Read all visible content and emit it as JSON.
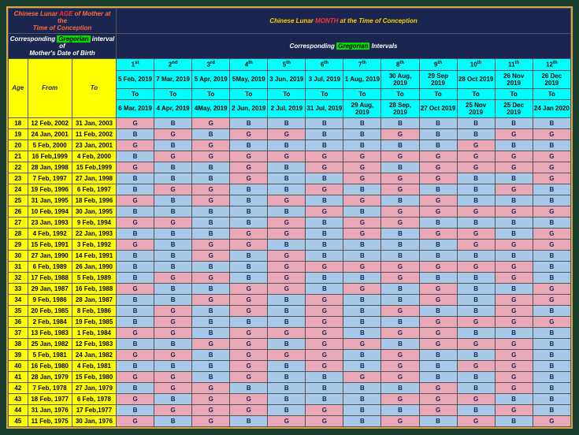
{
  "header": {
    "left_title_1": "Chinese Lunar",
    "left_title_age": "AGE",
    "left_title_2": "of Mother at the",
    "left_title_3": "Time of Conception",
    "right_title_1": "Chinese Lunar",
    "right_title_month": "MONTH",
    "right_title_2": "at the Time of Conception",
    "left_sub_1": "Corresponding",
    "left_sub_greg": "Gregorian",
    "left_sub_2": "interval of",
    "left_sub_3": "Mother's Date of Birth",
    "right_sub_1": "Corresponding",
    "right_sub_greg": "Gregorian",
    "right_sub_2": "Intervals"
  },
  "cols": {
    "age": "Age",
    "from": "From",
    "to": "To"
  },
  "months": [
    {
      "ord": "1",
      "sup": "st",
      "start": "5 Feb, 2019",
      "to": "To",
      "end": "6 Mar, 2019"
    },
    {
      "ord": "2",
      "sup": "nd",
      "start": "7 Mar, 2019",
      "to": "To",
      "end": "4 Apr, 2019"
    },
    {
      "ord": "3",
      "sup": "rd",
      "start": "5 Apr, 2019",
      "to": "To",
      "end": "4May, 2019"
    },
    {
      "ord": "4",
      "sup": "th",
      "start": "5May, 2019",
      "to": "To",
      "end": "2 Jun, 2019"
    },
    {
      "ord": "5",
      "sup": "th",
      "start": "3 Jun, 2019",
      "to": "To",
      "end": "2 Jul, 2019"
    },
    {
      "ord": "6",
      "sup": "th",
      "start": "3 Jul, 2019",
      "to": "To",
      "end": "31 Jul, 2019"
    },
    {
      "ord": "7",
      "sup": "th",
      "start": "1 Aug, 2019",
      "to": "To",
      "end": "29 Aug, 2019"
    },
    {
      "ord": "8",
      "sup": "th",
      "start": "30 Aug, 2019",
      "to": "To",
      "end": "28 Sep, 2019"
    },
    {
      "ord": "9",
      "sup": "th",
      "start": "29 Sep 2019",
      "to": "To",
      "end": "27 Oct 2019"
    },
    {
      "ord": "10",
      "sup": "th",
      "start": "28 Oct 2019",
      "to": "To",
      "end": "25 Nov 2019"
    },
    {
      "ord": "11",
      "sup": "th",
      "start": "26 Nov 2019",
      "to": "To",
      "end": "25 Dec 2019"
    },
    {
      "ord": "12",
      "sup": "th",
      "start": "26 Dec 2019",
      "to": "To",
      "end": "24 Jan 2020"
    }
  ],
  "rows": [
    {
      "age": "18",
      "from": "12 Feb, 2002",
      "to": "31 Jan, 2003",
      "v": [
        "G",
        "B",
        "G",
        "B",
        "B",
        "B",
        "B",
        "B",
        "B",
        "B",
        "B",
        "B"
      ]
    },
    {
      "age": "19",
      "from": "24 Jan, 2001",
      "to": "11 Feb, 2002",
      "v": [
        "B",
        "G",
        "B",
        "G",
        "G",
        "B",
        "B",
        "G",
        "B",
        "B",
        "G",
        "G"
      ]
    },
    {
      "age": "20",
      "from": "5 Feb, 2000",
      "to": "23 Jan, 2001",
      "v": [
        "G",
        "B",
        "G",
        "B",
        "B",
        "B",
        "B",
        "B",
        "B",
        "G",
        "B",
        "B"
      ]
    },
    {
      "age": "21",
      "from": "16 Feb,1999",
      "to": "4 Feb, 2000",
      "v": [
        "B",
        "G",
        "G",
        "G",
        "G",
        "G",
        "G",
        "G",
        "G",
        "G",
        "G",
        "G"
      ]
    },
    {
      "age": "22",
      "from": "28 Jan, 1998",
      "to": "15 Feb,1999",
      "v": [
        "G",
        "B",
        "B",
        "G",
        "B",
        "G",
        "G",
        "B",
        "G",
        "G",
        "G",
        "G"
      ]
    },
    {
      "age": "23",
      "from": "7 Feb, 1997",
      "to": "27 Jan, 1998",
      "v": [
        "B",
        "B",
        "B",
        "G",
        "B",
        "B",
        "G",
        "G",
        "G",
        "B",
        "B",
        "G"
      ]
    },
    {
      "age": "24",
      "from": "19 Feb, 1996",
      "to": "6 Feb, 1997",
      "v": [
        "B",
        "G",
        "G",
        "B",
        "B",
        "G",
        "B",
        "G",
        "B",
        "B",
        "G",
        "B"
      ]
    },
    {
      "age": "25",
      "from": "31 Jan, 1995",
      "to": "18 Feb, 1996",
      "v": [
        "G",
        "B",
        "G",
        "B",
        "G",
        "B",
        "G",
        "B",
        "G",
        "B",
        "B",
        "B"
      ]
    },
    {
      "age": "26",
      "from": "10 Feb, 1994",
      "to": "30 Jan, 1995",
      "v": [
        "B",
        "B",
        "B",
        "B",
        "B",
        "G",
        "B",
        "G",
        "G",
        "G",
        "G",
        "G"
      ]
    },
    {
      "age": "27",
      "from": "23 Jan, 1993",
      "to": "9 Feb, 1994",
      "v": [
        "G",
        "G",
        "B",
        "B",
        "G",
        "B",
        "G",
        "G",
        "B",
        "B",
        "B",
        "B"
      ]
    },
    {
      "age": "28",
      "from": "4 Feb, 1992",
      "to": "22 Jan, 1993",
      "v": [
        "B",
        "B",
        "B",
        "G",
        "G",
        "B",
        "G",
        "B",
        "G",
        "G",
        "B",
        "G"
      ]
    },
    {
      "age": "29",
      "from": "15 Feb, 1991",
      "to": "3 Feb, 1992",
      "v": [
        "G",
        "B",
        "G",
        "G",
        "B",
        "B",
        "B",
        "B",
        "B",
        "G",
        "G",
        "G"
      ]
    },
    {
      "age": "30",
      "from": "27 Jan, 1990",
      "to": "14 Feb, 1991",
      "v": [
        "B",
        "B",
        "G",
        "B",
        "G",
        "B",
        "B",
        "B",
        "B",
        "B",
        "B",
        "B"
      ]
    },
    {
      "age": "31",
      "from": "6 Feb, 1989",
      "to": "26 Jan, 1990",
      "v": [
        "B",
        "B",
        "B",
        "B",
        "G",
        "G",
        "G",
        "G",
        "G",
        "G",
        "G",
        "B"
      ]
    },
    {
      "age": "32",
      "from": "17 Feb, 1988",
      "to": "5 Feb, 1989",
      "v": [
        "B",
        "G",
        "G",
        "B",
        "G",
        "B",
        "B",
        "G",
        "B",
        "B",
        "G",
        "B"
      ]
    },
    {
      "age": "33",
      "from": "29 Jan, 1987",
      "to": "16 Feb, 1988",
      "v": [
        "G",
        "B",
        "B",
        "G",
        "G",
        "B",
        "G",
        "B",
        "G",
        "B",
        "B",
        "G"
      ]
    },
    {
      "age": "34",
      "from": "9 Feb, 1986",
      "to": "28 Jan, 1987",
      "v": [
        "B",
        "B",
        "G",
        "G",
        "B",
        "G",
        "B",
        "B",
        "G",
        "B",
        "G",
        "G"
      ]
    },
    {
      "age": "35",
      "from": "20 Feb, 1985",
      "to": "8 Feb, 1986",
      "v": [
        "B",
        "G",
        "B",
        "G",
        "B",
        "G",
        "B",
        "G",
        "B",
        "B",
        "G",
        "B"
      ]
    },
    {
      "age": "36",
      "from": "2 Feb, 1984",
      "to": "19 Feb, 1985",
      "v": [
        "B",
        "G",
        "B",
        "B",
        "B",
        "G",
        "B",
        "B",
        "G",
        "G",
        "G",
        "G"
      ]
    },
    {
      "age": "37",
      "from": "13 Feb, 1983",
      "to": "1 Feb, 1984",
      "v": [
        "G",
        "G",
        "B",
        "G",
        "G",
        "G",
        "B",
        "G",
        "G",
        "B",
        "B",
        "B"
      ]
    },
    {
      "age": "38",
      "from": "25 Jan, 1982",
      "to": "12 Feb, 1983",
      "v": [
        "B",
        "B",
        "G",
        "G",
        "B",
        "G",
        "G",
        "B",
        "G",
        "G",
        "G",
        "B"
      ]
    },
    {
      "age": "39",
      "from": "5 Feb, 1981",
      "to": "24 Jan, 1982",
      "v": [
        "G",
        "G",
        "B",
        "G",
        "G",
        "G",
        "B",
        "G",
        "B",
        "B",
        "G",
        "B"
      ]
    },
    {
      "age": "40",
      "from": "16 Feb, 1980",
      "to": "4 Feb, 1981",
      "v": [
        "B",
        "B",
        "B",
        "G",
        "B",
        "G",
        "B",
        "G",
        "B",
        "G",
        "G",
        "B"
      ]
    },
    {
      "age": "41",
      "from": "28 Jan, 1979",
      "to": "15 Feb, 1980",
      "v": [
        "G",
        "G",
        "B",
        "G",
        "B",
        "B",
        "G",
        "G",
        "B",
        "B",
        "G",
        "B"
      ]
    },
    {
      "age": "42",
      "from": "7 Feb, 1978",
      "to": "27 Jan, 1979",
      "v": [
        "B",
        "G",
        "G",
        "B",
        "B",
        "B",
        "B",
        "B",
        "G",
        "B",
        "G",
        "B"
      ]
    },
    {
      "age": "43",
      "from": "18 Feb, 1977",
      "to": "6 Feb, 1978",
      "v": [
        "G",
        "B",
        "G",
        "G",
        "B",
        "B",
        "B",
        "G",
        "G",
        "G",
        "B",
        "B"
      ]
    },
    {
      "age": "44",
      "from": "31 Jan, 1976",
      "to": "17 Feb,1977",
      "v": [
        "B",
        "G",
        "G",
        "G",
        "B",
        "G",
        "B",
        "B",
        "G",
        "B",
        "G",
        "B"
      ]
    },
    {
      "age": "45",
      "from": "11 Feb, 1975",
      "to": "30 Jan, 1976",
      "v": [
        "G",
        "B",
        "G",
        "B",
        "G",
        "G",
        "B",
        "G",
        "B",
        "G",
        "B",
        "G"
      ]
    }
  ],
  "colors": {
    "b_bg": "#a8c8e8",
    "g_bg": "#e8a8b8",
    "yellow": "#ffff00",
    "cyan": "#00ffff",
    "navy": "#1a2550",
    "border_outer": "#d4a84a"
  }
}
